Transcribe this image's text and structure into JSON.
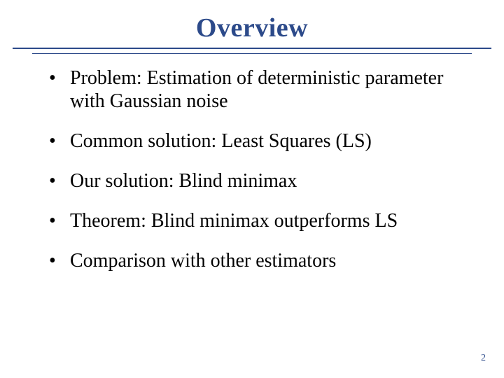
{
  "title": "Overview",
  "title_color": "#2c4a8a",
  "rule_color": "#2c4a8a",
  "background_color": "#ffffff",
  "body_text_color": "#000000",
  "title_fontsize": 38,
  "body_fontsize": 28,
  "bullets": [
    "Problem: Estimation of deterministic parameter with Gaussian noise",
    "Common solution: Least Squares (LS)",
    "Our solution: Blind minimax",
    "Theorem: Blind minimax outperforms LS",
    "Comparison with other estimators"
  ],
  "page_number": "2"
}
